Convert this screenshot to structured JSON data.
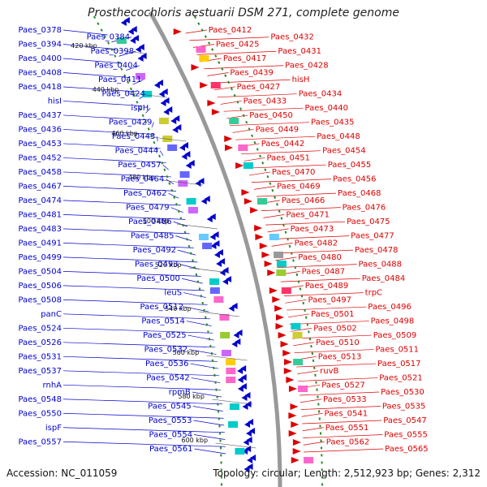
{
  "title": "Prosthecochloris aestuarii DSM 271, complete genome",
  "accession": "Accession: NC_011059",
  "summary": "Topology: circular; Length: 2,512,923 bp; Genes: 2,312",
  "colors": {
    "forward": "#dd0000",
    "reverse": "#0000cc",
    "backbone": "#999999",
    "ticks": "#2a8a2a"
  },
  "kbp_ticks": [
    "420 kbp",
    "440 kbp",
    "460 kbp",
    "480 kbp",
    "500 kbp",
    "520 kbp",
    "540 kbp",
    "560 kbp",
    "580 kbp",
    "600 kbp"
  ],
  "left_labels": [
    "Paes_0378",
    "Paes_0384",
    "Paes_0394",
    "Paes_0398",
    "Paes_0400",
    "Paes_0404",
    "Paes_0408",
    "Paes_0411",
    "Paes_0418",
    "Paes_0424",
    "hisI",
    "ispH",
    "Paes_0437",
    "Paes_0429",
    "Paes_0436",
    "Paes_0443",
    "Paes_0453",
    "Paes_0444",
    "Paes_0452",
    "Paes_0457",
    "Paes_0458",
    "Paes_0464",
    "Paes_0467",
    "Paes_0462",
    "Paes_0474",
    "Paes_0479",
    "Paes_0481",
    "Paes_0486",
    "Paes_0483",
    "Paes_0485",
    "Paes_0491",
    "Paes_0492",
    "Paes_0499",
    "Paes_0493",
    "Paes_0504",
    "Paes_0500",
    "Paes_0506",
    "leuS",
    "Paes_0508",
    "Paes_0512",
    "panC",
    "Paes_0514",
    "Paes_0524",
    "Paes_0525",
    "Paes_0526",
    "Paes_0532",
    "Paes_0531",
    "Paes_0536",
    "Paes_0537",
    "Paes_0542",
    "rnhA",
    "rpmB",
    "Paes_0548",
    "Paes_0545",
    "Paes_0550",
    "Paes_0553",
    "ispF",
    "Paes_0554",
    "Paes_0557",
    "Paes_0561"
  ],
  "right_labels": [
    "Paes_0412",
    "Paes_0432",
    "Paes_0425",
    "Paes_0431",
    "Paes_0417",
    "Paes_0428",
    "Paes_0439",
    "hisH",
    "Paes_0427",
    "Paes_0434",
    "Paes_0433",
    "Paes_0440",
    "Paes_0450",
    "Paes_0435",
    "Paes_0449",
    "Paes_0448",
    "Paes_0442",
    "Paes_0454",
    "Paes_0451",
    "Paes_0455",
    "Paes_0470",
    "Paes_0456",
    "Paes_0469",
    "Paes_0468",
    "Paes_0466",
    "Paes_0476",
    "Paes_0471",
    "Paes_0475",
    "Paes_0473",
    "Paes_0477",
    "Paes_0482",
    "Paes_0478",
    "Paes_0480",
    "Paes_0488",
    "Paes_0487",
    "Paes_0484",
    "Paes_0489",
    "trpC",
    "Paes_0497",
    "Paes_0496",
    "Paes_0501",
    "Paes_0498",
    "Paes_0502",
    "Paes_0509",
    "Paes_0510",
    "Paes_0511",
    "Paes_0513",
    "Paes_0517",
    "ruvB",
    "Paes_0521",
    "Paes_0527",
    "Paes_0530",
    "Paes_0533",
    "Paes_0535",
    "Paes_0541",
    "Paes_0547",
    "Paes_0551",
    "Paes_0555",
    "Paes_0562",
    "Paes_0565"
  ]
}
